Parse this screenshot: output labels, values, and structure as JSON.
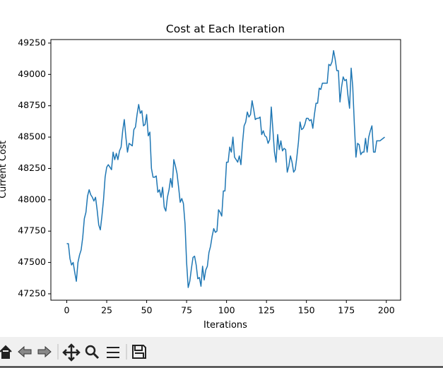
{
  "chart_data": {
    "type": "line",
    "title": "Cost at Each Iteration",
    "xlabel": "Iterations",
    "ylabel": "Current Cost",
    "x": [
      0,
      1,
      2,
      3,
      4,
      5,
      6,
      7,
      8,
      9,
      10,
      11,
      12,
      13,
      14,
      15,
      16,
      17,
      18,
      19,
      20,
      21,
      22,
      23,
      24,
      25,
      26,
      27,
      28,
      29,
      30,
      31,
      32,
      33,
      34,
      35,
      36,
      37,
      38,
      39,
      40,
      41,
      42,
      43,
      44,
      45,
      46,
      47,
      48,
      49,
      50,
      51,
      52,
      53,
      54,
      55,
      56,
      57,
      58,
      59,
      60,
      61,
      62,
      63,
      64,
      65,
      66,
      67,
      68,
      69,
      70,
      71,
      72,
      73,
      74,
      75,
      76,
      77,
      78,
      79,
      80,
      81,
      82,
      83,
      84,
      85,
      86,
      87,
      88,
      89,
      90,
      91,
      92,
      93,
      94,
      95,
      96,
      97,
      98,
      99,
      100,
      101,
      102,
      103,
      104,
      105,
      106,
      107,
      108,
      109,
      110,
      111,
      112,
      113,
      114,
      115,
      116,
      117,
      118,
      119,
      120,
      121,
      122,
      123,
      124,
      125,
      126,
      127,
      128,
      129,
      130,
      131,
      132,
      133,
      134,
      135,
      136,
      137,
      138,
      139,
      140,
      141,
      142,
      143,
      144,
      145,
      146,
      147,
      148,
      149,
      150,
      151,
      152,
      153,
      154,
      155,
      156,
      157,
      158,
      159,
      160,
      161,
      162,
      163,
      164,
      165,
      166,
      167,
      168,
      169,
      170,
      171,
      172,
      173,
      174,
      175,
      176,
      177,
      178,
      179,
      180,
      181,
      182,
      183,
      184,
      185,
      186,
      187,
      188,
      189,
      190,
      191,
      192,
      193,
      194,
      195,
      196,
      197,
      198,
      199
    ],
    "series": [
      {
        "color": "#1f77b4",
        "values": [
          47650,
          47650,
          47530,
          47480,
          47500,
          47420,
          47350,
          47500,
          47560,
          47600,
          47700,
          47850,
          47900,
          48030,
          48080,
          48040,
          48020,
          47990,
          48020,
          47920,
          47800,
          47760,
          47870,
          48000,
          48180,
          48260,
          48280,
          48260,
          48240,
          48380,
          48320,
          48370,
          48320,
          48390,
          48420,
          48550,
          48640,
          48500,
          48380,
          48450,
          48440,
          48430,
          48560,
          48580,
          48680,
          48760,
          48690,
          48710,
          48590,
          48600,
          48680,
          48510,
          48540,
          48250,
          48180,
          48180,
          48190,
          48060,
          48080,
          48020,
          48100,
          47940,
          47910,
          48020,
          48080,
          48170,
          48100,
          48320,
          48270,
          48210,
          48100,
          47980,
          48010,
          47970,
          47810,
          47500,
          47300,
          47350,
          47450,
          47540,
          47550,
          47480,
          47370,
          47380,
          47310,
          47470,
          47360,
          47440,
          47470,
          47580,
          47630,
          47710,
          47770,
          47740,
          47750,
          47920,
          47900,
          47870,
          48070,
          48070,
          48300,
          48300,
          48420,
          48380,
          48500,
          48340,
          48320,
          48300,
          48350,
          48280,
          48450,
          48590,
          48620,
          48700,
          48660,
          48680,
          48790,
          48720,
          48640,
          48650,
          48650,
          48660,
          48520,
          48550,
          48510,
          48500,
          48450,
          48480,
          48740,
          48560,
          48380,
          48300,
          48520,
          48400,
          48470,
          48390,
          48410,
          48400,
          48220,
          48270,
          48350,
          48300,
          48220,
          48240,
          48340,
          48460,
          48620,
          48560,
          48570,
          48600,
          48650,
          48650,
          48630,
          48640,
          48570,
          48680,
          48770,
          48770,
          48890,
          48880,
          48930,
          48930,
          48930,
          48930,
          49080,
          49070,
          49100,
          49190,
          49120,
          49030,
          49030,
          48780,
          48900,
          48980,
          48950,
          48960,
          48830,
          48730,
          49050,
          48900,
          48600,
          48340,
          48450,
          48440,
          48360,
          48380,
          48380,
          48490,
          48380,
          48500,
          48550,
          48590,
          48380,
          48380,
          48470,
          48470,
          48470,
          48480,
          48490,
          48500
        ]
      }
    ],
    "xlim": [
      -9.95,
      208.95
    ],
    "ylim": [
      47199,
      49278
    ],
    "xticks": [
      0,
      25,
      50,
      75,
      100,
      125,
      150,
      175,
      200
    ],
    "yticks": [
      47250,
      47500,
      47750,
      48000,
      48250,
      48500,
      48750,
      49000,
      49250
    ]
  }
}
